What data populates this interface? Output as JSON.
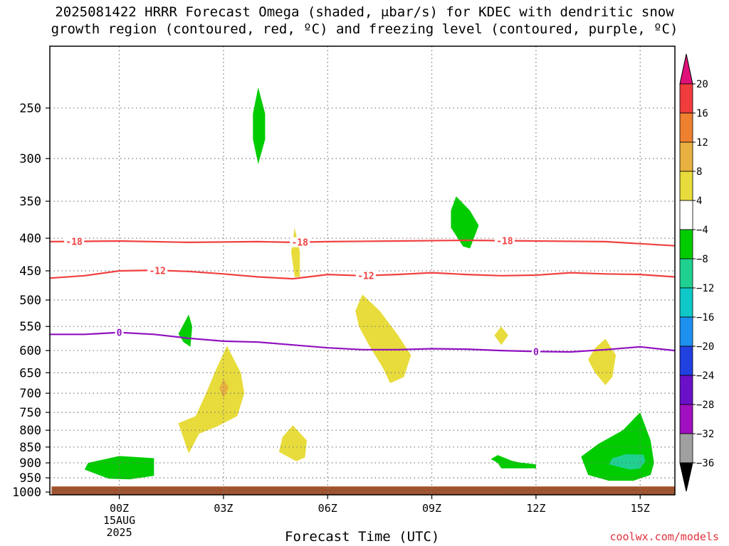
{
  "chart_data": {
    "type": "contour",
    "title_line1": "2025081422 HRRR Forecast Omega (shaded, μbar/s) for KDEC with dendritic snow",
    "title_line2": "growth region (contoured, red, ºC) and freezing level (contoured, purple, ºC)",
    "xlabel": "Forecast Time (UTC)",
    "credit": "coolwx.com/models",
    "x_ticks": [
      {
        "hour": 0,
        "label": "00Z",
        "date_line1": "15AUG",
        "date_line2": "2025"
      },
      {
        "hour": 3,
        "label": "03Z"
      },
      {
        "hour": 6,
        "label": "06Z"
      },
      {
        "hour": 9,
        "label": "09Z"
      },
      {
        "hour": 12,
        "label": "12Z"
      },
      {
        "hour": 15,
        "label": "15Z"
      }
    ],
    "xlim_hours": [
      -2,
      16
    ],
    "y_ticks": [
      250,
      300,
      350,
      400,
      450,
      500,
      550,
      600,
      650,
      700,
      750,
      800,
      850,
      900,
      950,
      1000
    ],
    "ylim_hpa": [
      200,
      1010
    ],
    "y_scale": "log",
    "grid": true,
    "colorbar": {
      "labels": [
        "20",
        "16",
        "12",
        "8",
        "4",
        "−4",
        "−8",
        "−12",
        "−16",
        "−20",
        "−24",
        "−28",
        "−32",
        "−36"
      ],
      "bands": [
        {
          "from": 16,
          "to": 20,
          "color": "#f03c3c"
        },
        {
          "from": 12,
          "to": 16,
          "color": "#ee8030"
        },
        {
          "from": 8,
          "to": 12,
          "color": "#e8b040"
        },
        {
          "from": 4,
          "to": 8,
          "color": "#e8dc3c"
        },
        {
          "from": -4,
          "to": 4,
          "color": "#ffffff"
        },
        {
          "from": -8,
          "to": -4,
          "color": "#00cc00"
        },
        {
          "from": -12,
          "to": -8,
          "color": "#20d090"
        },
        {
          "from": -16,
          "to": -12,
          "color": "#10c8c8"
        },
        {
          "from": -20,
          "to": -16,
          "color": "#1e90f0"
        },
        {
          "from": -24,
          "to": -20,
          "color": "#2040e0"
        },
        {
          "from": -28,
          "to": -24,
          "color": "#6a10c8"
        },
        {
          "from": -32,
          "to": -28,
          "color": "#a010c0"
        },
        {
          "from": -36,
          "to": -32,
          "color": "#a0a0a0"
        }
      ],
      "top_arrow_color": "#e0107a",
      "bottom_arrow_color": "#000000"
    },
    "contours": [
      {
        "label": "-18",
        "color": "#f04040",
        "points": [
          [
            -2,
            405
          ],
          [
            0,
            404
          ],
          [
            2,
            406
          ],
          [
            4,
            405
          ],
          [
            5,
            406
          ],
          [
            6,
            405
          ],
          [
            8,
            404
          ],
          [
            10,
            403
          ],
          [
            12,
            404
          ],
          [
            14,
            405
          ],
          [
            16,
            411
          ]
        ],
        "label_hours": [
          -1.3,
          5.2,
          11.1
        ]
      },
      {
        "label": "-12",
        "color": "#f04040",
        "points": [
          [
            -2,
            462
          ],
          [
            -1,
            458
          ],
          [
            0,
            450
          ],
          [
            1,
            449
          ],
          [
            2,
            451
          ],
          [
            3,
            455
          ],
          [
            4,
            460
          ],
          [
            5,
            463
          ],
          [
            6,
            456
          ],
          [
            7,
            458
          ],
          [
            8,
            456
          ],
          [
            9,
            453
          ],
          [
            10,
            456
          ],
          [
            11,
            458
          ],
          [
            12,
            457
          ],
          [
            13,
            453
          ],
          [
            14,
            455
          ],
          [
            15,
            456
          ],
          [
            16,
            460
          ]
        ],
        "label_hours": [
          1.1,
          7.1
        ]
      },
      {
        "label": "0",
        "color": "#9010c0",
        "points": [
          [
            -2,
            566
          ],
          [
            -1,
            566
          ],
          [
            0,
            562
          ],
          [
            1,
            566
          ],
          [
            2,
            574
          ],
          [
            3,
            580
          ],
          [
            4,
            582
          ],
          [
            5,
            588
          ],
          [
            6,
            594
          ],
          [
            7,
            598
          ],
          [
            8,
            598
          ],
          [
            9,
            596
          ],
          [
            10,
            597
          ],
          [
            11,
            600
          ],
          [
            12,
            602
          ],
          [
            13,
            603
          ],
          [
            14,
            598
          ],
          [
            15,
            592
          ],
          [
            16,
            600
          ]
        ],
        "label_hours": [
          0,
          12
        ]
      }
    ],
    "omega_regions": [
      {
        "band": "-8 to -4",
        "color": "#00cc00",
        "points": [
          [
            4.0,
            232
          ],
          [
            4.2,
            255
          ],
          [
            4.2,
            280
          ],
          [
            4.0,
            306
          ],
          [
            3.85,
            280
          ],
          [
            3.85,
            255
          ]
        ]
      },
      {
        "band": "-8 to -4",
        "color": "#00cc00",
        "points": [
          [
            9.7,
            344
          ],
          [
            10.1,
            362
          ],
          [
            10.35,
            382
          ],
          [
            10.1,
            415
          ],
          [
            9.9,
            412
          ],
          [
            9.55,
            385
          ],
          [
            9.55,
            362
          ]
        ]
      },
      {
        "band": "4 to 8",
        "color": "#e8dc3c",
        "points": [
          [
            5.05,
            385
          ],
          [
            5.2,
            420
          ],
          [
            5.2,
            460
          ],
          [
            5.05,
            460
          ],
          [
            4.95,
            420
          ]
        ]
      },
      {
        "band": "-8 to -4",
        "color": "#00cc00",
        "points": [
          [
            2.0,
            527
          ],
          [
            2.1,
            550
          ],
          [
            2.05,
            592
          ],
          [
            1.85,
            582
          ],
          [
            1.7,
            565
          ]
        ]
      },
      {
        "band": "4 to 8",
        "color": "#e8dc3c",
        "points": [
          [
            7.0,
            490
          ],
          [
            7.5,
            520
          ],
          [
            8.0,
            565
          ],
          [
            8.4,
            610
          ],
          [
            8.2,
            660
          ],
          [
            7.8,
            675
          ],
          [
            7.6,
            640
          ],
          [
            7.2,
            590
          ],
          [
            6.9,
            550
          ],
          [
            6.8,
            520
          ]
        ]
      },
      {
        "band": "4 to 8",
        "color": "#e8dc3c",
        "points": [
          [
            11.0,
            550
          ],
          [
            11.2,
            568
          ],
          [
            11.0,
            588
          ],
          [
            10.8,
            568
          ]
        ]
      },
      {
        "band": "4 to 8",
        "color": "#e8dc3c",
        "points": [
          [
            14.0,
            575
          ],
          [
            14.3,
            610
          ],
          [
            14.2,
            660
          ],
          [
            14.0,
            680
          ],
          [
            13.7,
            650
          ],
          [
            13.5,
            620
          ],
          [
            13.7,
            595
          ]
        ]
      },
      {
        "band": "4 to 8",
        "color": "#e8dc3c",
        "points": [
          [
            3.1,
            590
          ],
          [
            3.5,
            650
          ],
          [
            3.6,
            700
          ],
          [
            3.4,
            760
          ],
          [
            2.8,
            790
          ],
          [
            2.3,
            810
          ],
          [
            2.0,
            870
          ],
          [
            1.7,
            780
          ],
          [
            2.2,
            760
          ],
          [
            2.5,
            700
          ],
          [
            2.8,
            640
          ]
        ]
      },
      {
        "band": "8 to 12",
        "color": "#e8b040",
        "points": [
          [
            3.0,
            665
          ],
          [
            3.15,
            685
          ],
          [
            3.0,
            712
          ],
          [
            2.88,
            688
          ]
        ]
      },
      {
        "band": "4 to 8",
        "color": "#e8dc3c",
        "points": [
          [
            5.0,
            786
          ],
          [
            5.4,
            830
          ],
          [
            5.35,
            882
          ],
          [
            5.1,
            895
          ],
          [
            4.6,
            865
          ],
          [
            4.7,
            820
          ]
        ]
      },
      {
        "band": "-8 to -4",
        "color": "#00cc00",
        "points": [
          [
            0.0,
            878
          ],
          [
            1.0,
            885
          ],
          [
            1.0,
            943
          ],
          [
            0.3,
            955
          ],
          [
            -0.3,
            953
          ],
          [
            -1.0,
            922
          ],
          [
            -0.9,
            900
          ]
        ]
      },
      {
        "band": "-8 to -4",
        "color": "#00cc00",
        "points": [
          [
            10.9,
            875
          ],
          [
            11.3,
            893
          ],
          [
            11.5,
            898
          ],
          [
            12.0,
            905
          ],
          [
            12.0,
            918
          ],
          [
            11.0,
            918
          ],
          [
            10.9,
            900
          ],
          [
            10.7,
            888
          ]
        ]
      },
      {
        "band": "-8 to -4",
        "color": "#00cc00",
        "points": [
          [
            15.0,
            750
          ],
          [
            15.3,
            830
          ],
          [
            15.4,
            900
          ],
          [
            15.3,
            940
          ],
          [
            14.8,
            960
          ],
          [
            14.1,
            960
          ],
          [
            13.5,
            940
          ],
          [
            13.3,
            880
          ],
          [
            13.8,
            840
          ],
          [
            14.5,
            800
          ]
        ]
      },
      {
        "band": "-12 to -8",
        "color": "#20d090",
        "points": [
          [
            14.6,
            872
          ],
          [
            15.1,
            874
          ],
          [
            15.15,
            895
          ],
          [
            15.0,
            918
          ],
          [
            14.7,
            922
          ],
          [
            14.1,
            905
          ],
          [
            14.2,
            885
          ]
        ]
      }
    ],
    "ground_color": "#a0522d",
    "ground_top_hpa": 980
  }
}
